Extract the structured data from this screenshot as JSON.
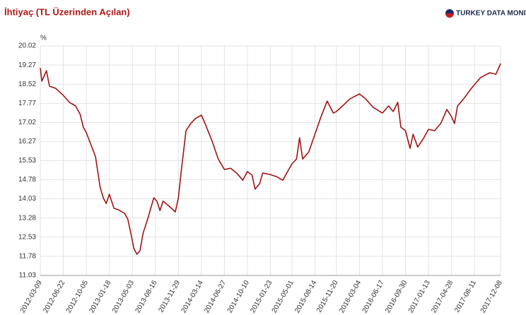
{
  "chart_data": {
    "type": "line",
    "title": "İhtiyaç (TL Üzerinden Açılan)",
    "brand": "TURKEY DATA MONITOR",
    "y_label": "%",
    "x": [
      "2012-03-09",
      "2012-03-16",
      "2012-04-06",
      "2012-04-20",
      "2012-05-18",
      "2012-06-22",
      "2012-07-20",
      "2012-08-17",
      "2012-09-07",
      "2012-09-21",
      "2012-10-05",
      "2012-10-26",
      "2012-11-16",
      "2012-12-07",
      "2012-12-21",
      "2013-01-04",
      "2013-01-18",
      "2013-02-08",
      "2013-03-01",
      "2013-03-29",
      "2013-04-12",
      "2013-04-26",
      "2013-05-10",
      "2013-05-24",
      "2013-06-07",
      "2013-06-21",
      "2013-07-12",
      "2013-07-26",
      "2013-08-09",
      "2013-08-23",
      "2013-09-06",
      "2013-09-20",
      "2013-10-18",
      "2013-11-15",
      "2013-11-29",
      "2013-12-13",
      "2014-01-03",
      "2014-01-24",
      "2014-02-14",
      "2014-03-14",
      "2014-04-04",
      "2014-05-02",
      "2014-05-30",
      "2014-06-27",
      "2014-07-25",
      "2014-08-22",
      "2014-09-19",
      "2014-10-10",
      "2014-10-31",
      "2014-11-14",
      "2014-12-05",
      "2014-12-19",
      "2015-01-23",
      "2015-02-20",
      "2015-03-20",
      "2015-05-01",
      "2015-05-22",
      "2015-06-05",
      "2015-06-19",
      "2015-07-17",
      "2015-08-14",
      "2015-09-11",
      "2015-10-09",
      "2015-11-06",
      "2015-11-20",
      "2015-12-18",
      "2016-01-22",
      "2016-03-04",
      "2016-04-01",
      "2016-05-06",
      "2016-06-17",
      "2016-07-15",
      "2016-08-05",
      "2016-08-26",
      "2016-09-09",
      "2016-09-30",
      "2016-10-21",
      "2016-11-04",
      "2016-11-25",
      "2016-12-23",
      "2017-01-13",
      "2017-02-10",
      "2017-03-10",
      "2017-04-07",
      "2017-04-28",
      "2017-05-12",
      "2017-05-26",
      "2017-06-23",
      "2017-07-21",
      "2017-08-11",
      "2017-09-08",
      "2017-10-20",
      "2017-11-17",
      "2017-12-08"
    ],
    "series": [
      {
        "color": "#a01414",
        "values": [
          19.16,
          18.64,
          19.05,
          18.44,
          18.36,
          18.08,
          17.81,
          17.67,
          17.34,
          16.84,
          16.62,
          16.15,
          15.68,
          14.49,
          14.07,
          13.85,
          14.21,
          13.66,
          13.6,
          13.46,
          13.24,
          12.69,
          12.08,
          11.86,
          12.0,
          12.69,
          13.24,
          13.66,
          14.07,
          13.94,
          13.57,
          13.94,
          13.74,
          13.52,
          14.07,
          15.18,
          16.7,
          16.98,
          17.17,
          17.31,
          16.89,
          16.29,
          15.59,
          15.18,
          15.23,
          15.04,
          14.76,
          15.1,
          14.96,
          14.41,
          14.63,
          15.04,
          14.98,
          14.9,
          14.76,
          15.4,
          15.59,
          16.42,
          15.59,
          15.87,
          16.56,
          17.25,
          17.86,
          17.39,
          17.45,
          17.67,
          17.95,
          18.14,
          17.95,
          17.61,
          17.39,
          17.67,
          17.45,
          17.81,
          16.84,
          16.7,
          16.01,
          16.56,
          16.06,
          16.42,
          16.75,
          16.7,
          16.98,
          17.53,
          17.25,
          16.98,
          17.67,
          17.95,
          18.28,
          18.5,
          18.78,
          18.97,
          18.91,
          19.33
        ]
      }
    ],
    "xlim": [
      "2012-03-09",
      "2017-12-08"
    ],
    "xticks": [
      "2012-03-09",
      "2012-06-22",
      "2012-10-05",
      "2013-01-18",
      "2013-05-03",
      "2013-08-16",
      "2013-11-29",
      "2014-03-14",
      "2014-06-27",
      "2014-10-10",
      "2015-01-23",
      "2015-05-01",
      "2015-08-14",
      "2015-11-20",
      "2016-03-04",
      "2016-06-17",
      "2016-09-30",
      "2017-01-13",
      "2017-04-28",
      "2017-08-11",
      "2017-12-08"
    ],
    "ylim": [
      11.03,
      20.02
    ],
    "yticks": [
      11.03,
      11.78,
      12.53,
      13.28,
      14.03,
      14.78,
      15.53,
      16.27,
      17.02,
      17.77,
      18.52,
      19.27,
      20.02
    ],
    "grid": true
  }
}
